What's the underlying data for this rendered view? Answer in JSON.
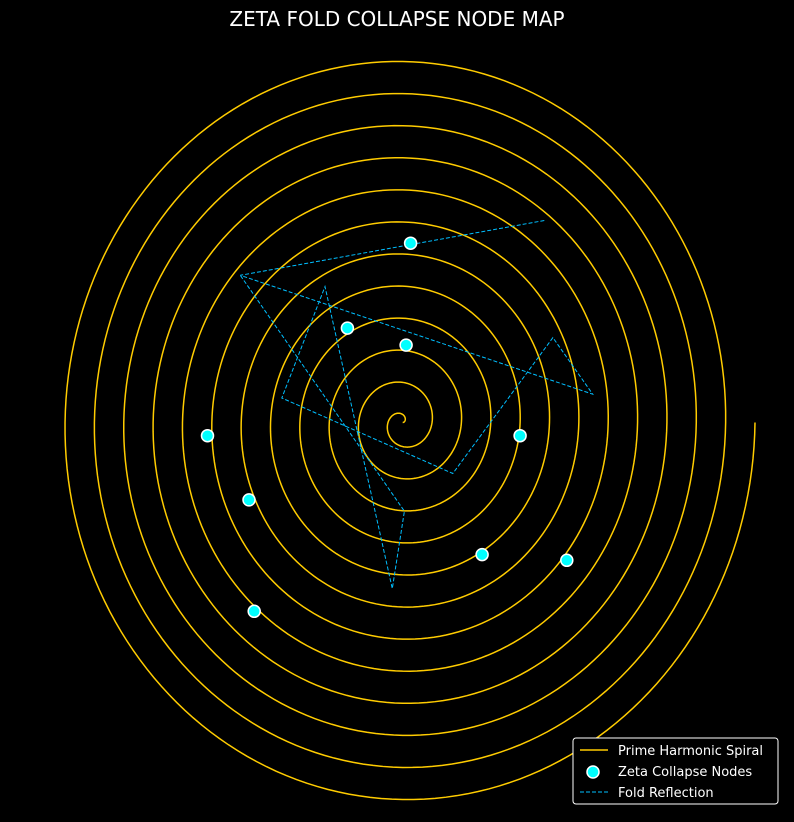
{
  "chart_data": {
    "type": "line",
    "title": "ZETA FOLD COLLAPSE NODE MAP",
    "xlabel": "",
    "ylabel": "",
    "xlim": [
      -10.5,
      10.2
    ],
    "ylim": [
      -10.0,
      10.0
    ],
    "grid": false,
    "axes_visible": false,
    "legend_placement": "lower-right",
    "colors": {
      "background": "#000000",
      "spiral": "#ffcc00",
      "nodes_fill": "#00ffff",
      "nodes_edge": "#ffffff",
      "fold": "#00bfff",
      "legend_edge": "#ffffff",
      "text": "#ffffff"
    },
    "series": [
      {
        "name": "Prime Harmonic Spiral",
        "kind": "line",
        "style": "solid",
        "function": "archimedean",
        "r_per_turn": 0.85,
        "theta_max_turns": 12,
        "center": [
          0,
          0
        ]
      },
      {
        "name": "Zeta Collapse Nodes",
        "kind": "scatter",
        "points": [
          [
            0.23,
            4.75
          ],
          [
            -1.6,
            2.5
          ],
          [
            0.1,
            2.05
          ],
          [
            3.4,
            -0.35
          ],
          [
            -5.65,
            -0.35
          ],
          [
            -4.45,
            -2.05
          ],
          [
            2.3,
            -3.5
          ],
          [
            4.75,
            -3.65
          ],
          [
            -4.3,
            -5.0
          ]
        ]
      },
      {
        "name": "Fold Reflection",
        "kind": "line",
        "style": "dashed",
        "points": [
          [
            4.1,
            5.35
          ],
          [
            -4.7,
            3.9
          ],
          [
            5.5,
            0.75
          ],
          [
            4.35,
            2.25
          ],
          [
            1.45,
            -1.35
          ],
          [
            -3.5,
            0.65
          ],
          [
            -2.25,
            3.6
          ],
          [
            -0.3,
            -4.4
          ],
          [
            0.05,
            -2.35
          ],
          [
            -4.7,
            3.9
          ]
        ]
      }
    ]
  }
}
